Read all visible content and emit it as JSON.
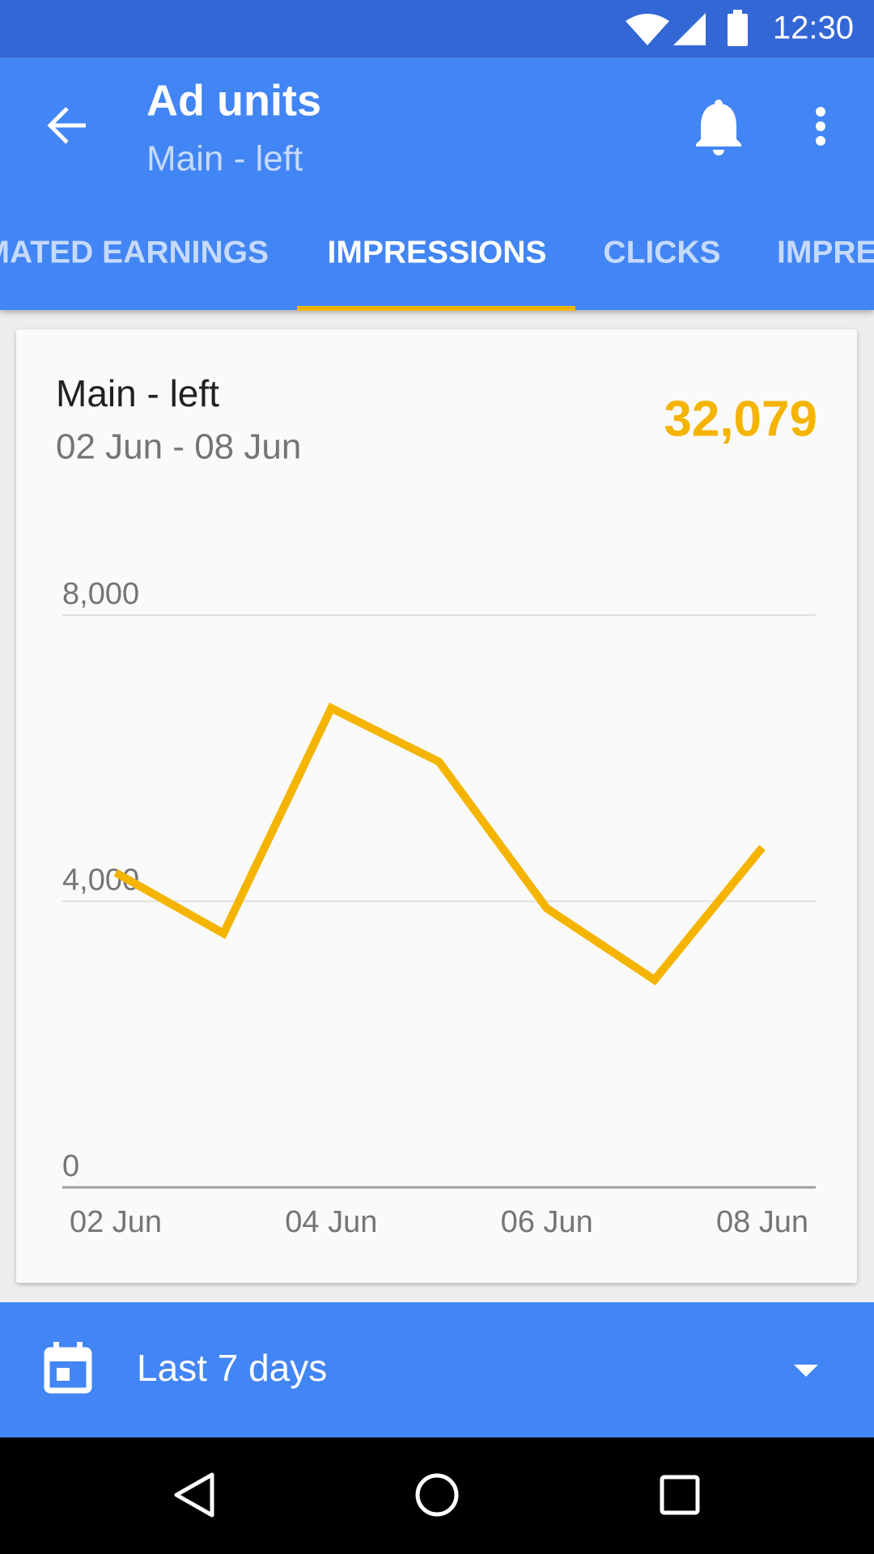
{
  "status_bar": {
    "time": "12:30"
  },
  "app_bar": {
    "title": "Ad units",
    "subtitle": "Main - left"
  },
  "tabs": [
    "MATED EARNINGS",
    "IMPRESSIONS",
    "CLICKS",
    "IMPRE"
  ],
  "card": {
    "title": "Main - left",
    "date_range": "02 Jun - 08 Jun",
    "total": "32,079"
  },
  "chart_data": {
    "type": "line",
    "categories": [
      "02 Jun",
      null,
      "04 Jun",
      null,
      "06 Jun",
      null,
      "08 Jun"
    ],
    "series": [
      {
        "name": "Impressions",
        "color": "#f4b400",
        "values": [
          4400,
          3550,
          6700,
          5950,
          3900,
          2900,
          4750
        ]
      }
    ],
    "ylim": [
      0,
      8000
    ],
    "yticks": [
      0,
      {
        "value": 4000,
        "label": "4,000"
      },
      {
        "value": 8000,
        "label": "8,000"
      }
    ],
    "grid": true
  },
  "date_selector": {
    "label": "Last 7 days"
  }
}
